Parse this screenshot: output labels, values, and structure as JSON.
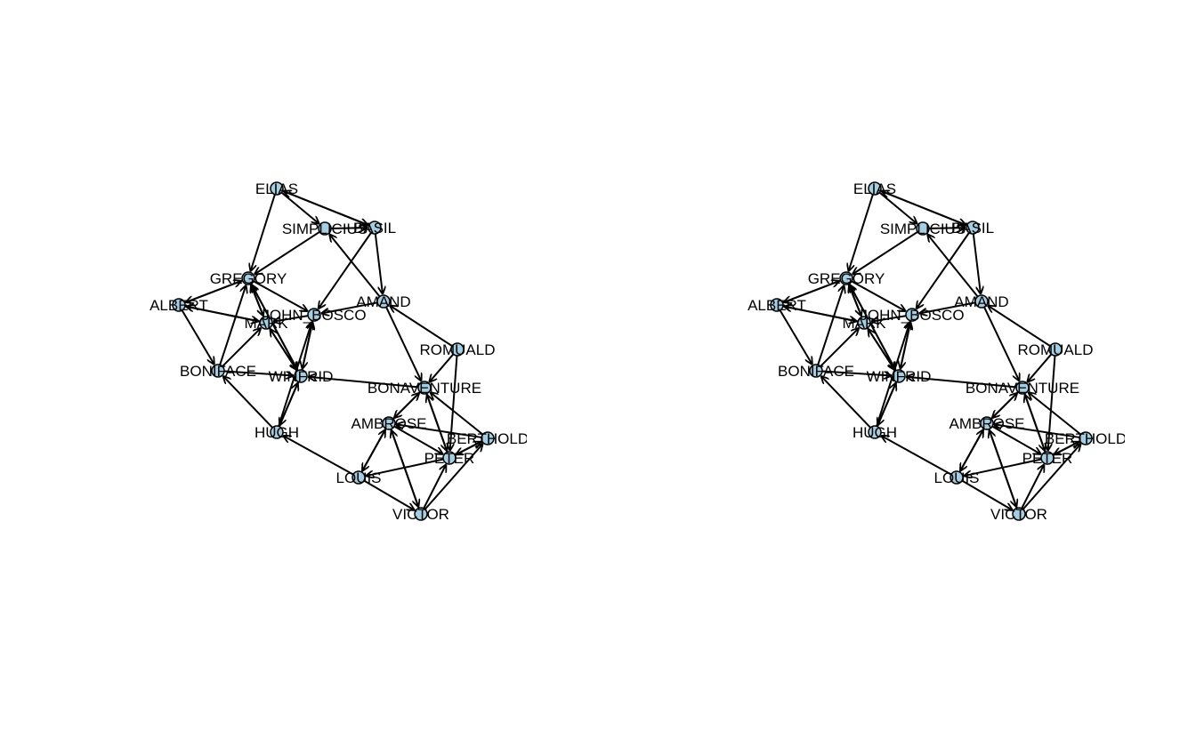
{
  "colors": {
    "node_fill": "#a6cee3",
    "node_stroke": "#000000",
    "edge": "#000000",
    "background": "#ffffff"
  },
  "panels": [
    {
      "id": "left-network",
      "nodes": [
        "ELIAS",
        "SIMPLICIUS",
        "BASIL",
        "GREGORY",
        "ALBERT",
        "AMAND",
        "JOHN_BOSCO",
        "MARK",
        "ROMUALD",
        "BONIFACE",
        "WINFRID",
        "BONAVENTURE",
        "AMBROSE",
        "HUGH",
        "BERTHOLD",
        "PETER",
        "LOUIS",
        "VICTOR"
      ]
    },
    {
      "id": "right-network",
      "nodes": [
        "ELIAS",
        "SIMPLICIUS",
        "BASIL",
        "GREGORY",
        "ALBERT",
        "AMAND",
        "JOHN_BOSCO",
        "MARK",
        "ROMUALD",
        "BONIFACE",
        "WINFRID",
        "BONAVENTURE",
        "AMBROSE",
        "HUGH",
        "BERTHOLD",
        "PETER",
        "LOUIS",
        "VICTOR"
      ]
    }
  ],
  "edges": [
    [
      "ELIAS",
      "BASIL"
    ],
    [
      "BASIL",
      "ELIAS"
    ],
    [
      "ELIAS",
      "SIMPLICIUS"
    ],
    [
      "ELIAS",
      "GREGORY"
    ],
    [
      "SIMPLICIUS",
      "BASIL"
    ],
    [
      "BASIL",
      "AMAND"
    ],
    [
      "SIMPLICIUS",
      "GREGORY"
    ],
    [
      "AMAND",
      "SIMPLICIUS"
    ],
    [
      "BASIL",
      "JOHN_BOSCO"
    ],
    [
      "GREGORY",
      "JOHN_BOSCO"
    ],
    [
      "ALBERT",
      "GREGORY"
    ],
    [
      "GREGORY",
      "ALBERT"
    ],
    [
      "ALBERT",
      "MARK"
    ],
    [
      "MARK",
      "ALBERT"
    ],
    [
      "ALBERT",
      "BONIFACE"
    ],
    [
      "BONIFACE",
      "GREGORY"
    ],
    [
      "GREGORY",
      "MARK"
    ],
    [
      "MARK",
      "GREGORY"
    ],
    [
      "GREGORY",
      "WINFRID"
    ],
    [
      "WINFRID",
      "GREGORY"
    ],
    [
      "JOHN_BOSCO",
      "MARK"
    ],
    [
      "MARK",
      "WINFRID"
    ],
    [
      "WINFRID",
      "MARK"
    ],
    [
      "JOHN_BOSCO",
      "WINFRID"
    ],
    [
      "WINFRID",
      "JOHN_BOSCO"
    ],
    [
      "AMAND",
      "JOHN_BOSCO"
    ],
    [
      "AMAND",
      "BONAVENTURE"
    ],
    [
      "BONIFACE",
      "MARK"
    ],
    [
      "BONIFACE",
      "WINFRID"
    ],
    [
      "HUGH",
      "BONIFACE"
    ],
    [
      "WINFRID",
      "HUGH"
    ],
    [
      "HUGH",
      "WINFRID"
    ],
    [
      "HUGH",
      "JOHN_BOSCO"
    ],
    [
      "ROMUALD",
      "AMAND"
    ],
    [
      "ROMUALD",
      "BONAVENTURE"
    ],
    [
      "ROMUALD",
      "PETER"
    ],
    [
      "BONAVENTURE",
      "WINFRID"
    ],
    [
      "AMBROSE",
      "BONAVENTURE"
    ],
    [
      "BONAVENTURE",
      "AMBROSE"
    ],
    [
      "BERTHOLD",
      "BONAVENTURE"
    ],
    [
      "BONAVENTURE",
      "PETER"
    ],
    [
      "PETER",
      "BONAVENTURE"
    ],
    [
      "BERTHOLD",
      "AMBROSE"
    ],
    [
      "PETER",
      "BERTHOLD"
    ],
    [
      "BERTHOLD",
      "PETER"
    ],
    [
      "LOUIS",
      "HUGH"
    ],
    [
      "AMBROSE",
      "LOUIS"
    ],
    [
      "LOUIS",
      "AMBROSE"
    ],
    [
      "AMBROSE",
      "VICTOR"
    ],
    [
      "VICTOR",
      "AMBROSE"
    ],
    [
      "PETER",
      "LOUIS"
    ],
    [
      "VICTOR",
      "PETER"
    ],
    [
      "VICTOR",
      "BERTHOLD"
    ],
    [
      "LOUIS",
      "VICTOR"
    ],
    [
      "AMBROSE",
      "PETER"
    ]
  ]
}
